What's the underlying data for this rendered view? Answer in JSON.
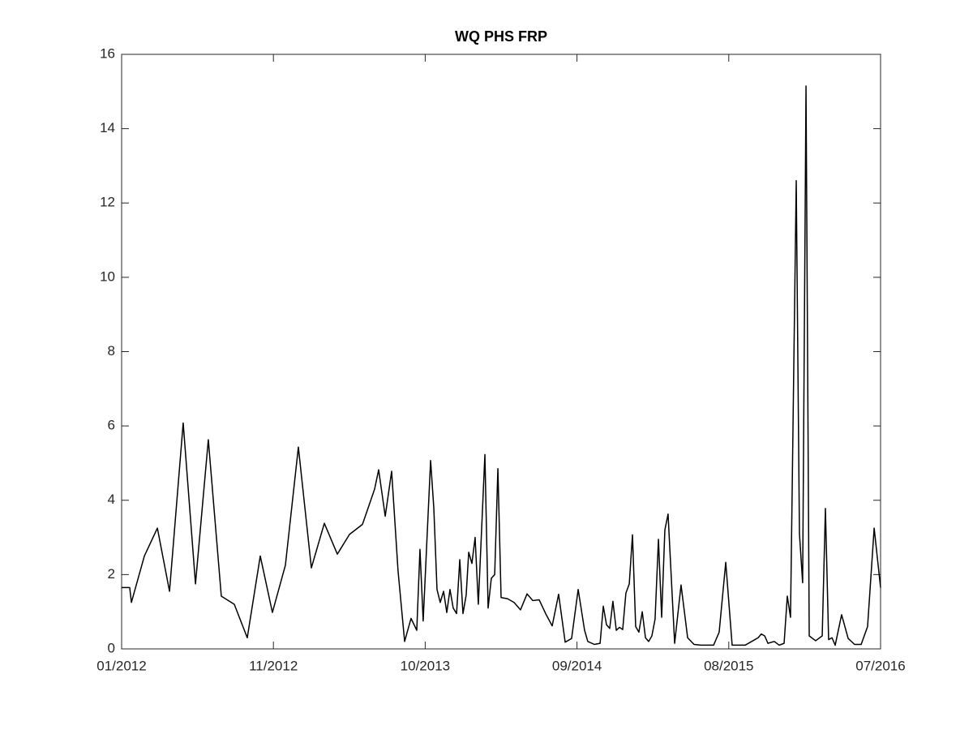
{
  "chart_data": {
    "type": "line",
    "title": "WQ PHS FRP",
    "x": [
      2012.0,
      2012.048,
      2012.058,
      2012.135,
      2012.212,
      2012.284,
      2012.365,
      2012.438,
      2012.514,
      2012.591,
      2012.668,
      2012.745,
      2012.822,
      2012.894,
      2012.971,
      2013.048,
      2013.125,
      2013.202,
      2013.279,
      2013.351,
      2013.428,
      2013.5,
      2013.524,
      2013.563,
      2013.601,
      2013.639,
      2013.678,
      2013.716,
      2013.75,
      2013.769,
      2013.788,
      2013.832,
      2013.851,
      2013.87,
      2013.889,
      2013.909,
      2013.928,
      2013.947,
      2013.966,
      2013.986,
      2014.005,
      2014.024,
      2014.043,
      2014.058,
      2014.077,
      2014.096,
      2014.115,
      2014.154,
      2014.173,
      2014.192,
      2014.212,
      2014.231,
      2014.25,
      2014.288,
      2014.327,
      2014.365,
      2014.404,
      2014.438,
      2014.476,
      2014.514,
      2014.553,
      2014.591,
      2014.63,
      2014.668,
      2014.707,
      2014.745,
      2014.764,
      2014.803,
      2014.837,
      2014.856,
      2014.875,
      2014.894,
      2014.913,
      2014.933,
      2014.952,
      2014.971,
      2014.99,
      2015.01,
      2015.029,
      2015.048,
      2015.067,
      2015.087,
      2015.106,
      2015.125,
      2015.144,
      2015.163,
      2015.183,
      2015.202,
      2015.221,
      2015.24,
      2015.279,
      2015.317,
      2015.356,
      2015.394,
      2015.433,
      2015.471,
      2015.51,
      2015.543,
      2015.582,
      2015.62,
      2015.659,
      2015.697,
      2015.736,
      2015.774,
      2015.793,
      2015.813,
      2015.832,
      2015.87,
      2015.899,
      2015.928,
      2015.947,
      2015.966,
      2016.0,
      2016.019,
      2016.038,
      2016.058,
      2016.077,
      2016.115,
      2016.154,
      2016.173,
      2016.192,
      2016.212,
      2016.231,
      2016.269,
      2016.308,
      2016.346,
      2016.385,
      2016.423,
      2016.462,
      2016.5
    ],
    "series": [
      {
        "color": "#000000",
        "values": [
          1.65,
          1.65,
          1.25,
          2.5,
          3.25,
          1.55,
          6.08,
          1.75,
          5.63,
          1.42,
          1.2,
          0.3,
          2.5,
          0.98,
          2.25,
          5.43,
          2.18,
          3.38,
          2.55,
          3.08,
          3.35,
          4.3,
          4.82,
          3.57,
          4.78,
          2.1,
          0.2,
          0.82,
          0.5,
          2.68,
          0.75,
          5.07,
          3.8,
          1.6,
          1.25,
          1.55,
          0.98,
          1.6,
          1.1,
          0.95,
          2.4,
          0.95,
          1.45,
          2.6,
          2.3,
          3.0,
          1.2,
          5.23,
          1.1,
          1.9,
          2.0,
          4.85,
          1.38,
          1.35,
          1.25,
          1.05,
          1.48,
          1.3,
          1.32,
          0.95,
          0.62,
          1.47,
          0.18,
          0.28,
          1.6,
          0.5,
          0.2,
          0.12,
          0.15,
          1.15,
          0.65,
          0.55,
          1.28,
          0.5,
          0.58,
          0.52,
          1.5,
          1.75,
          3.07,
          0.6,
          0.45,
          1.0,
          0.3,
          0.2,
          0.35,
          0.8,
          2.95,
          0.85,
          3.2,
          3.63,
          0.15,
          1.72,
          0.3,
          0.12,
          0.1,
          0.1,
          0.1,
          0.45,
          2.33,
          0.1,
          0.1,
          0.1,
          0.2,
          0.3,
          0.4,
          0.35,
          0.15,
          0.2,
          0.1,
          0.15,
          1.42,
          0.85,
          12.6,
          3.1,
          1.78,
          15.15,
          0.35,
          0.22,
          0.35,
          3.78,
          0.25,
          0.3,
          0.1,
          0.92,
          0.28,
          0.12,
          0.12,
          0.6,
          3.25,
          1.65
        ]
      }
    ],
    "xlim": [
      2012.0,
      2016.5
    ],
    "xticks": [
      {
        "value": 2012.0,
        "label": "01/2012"
      },
      {
        "value": 2012.9,
        "label": "11/2012"
      },
      {
        "value": 2013.8,
        "label": "10/2013"
      },
      {
        "value": 2014.7,
        "label": "09/2014"
      },
      {
        "value": 2015.6,
        "label": "08/2015"
      },
      {
        "value": 2016.5,
        "label": "07/2016"
      }
    ],
    "ylim": [
      0,
      16
    ],
    "yticks": [
      0,
      2,
      4,
      6,
      8,
      10,
      12,
      14,
      16
    ],
    "grid": false
  }
}
